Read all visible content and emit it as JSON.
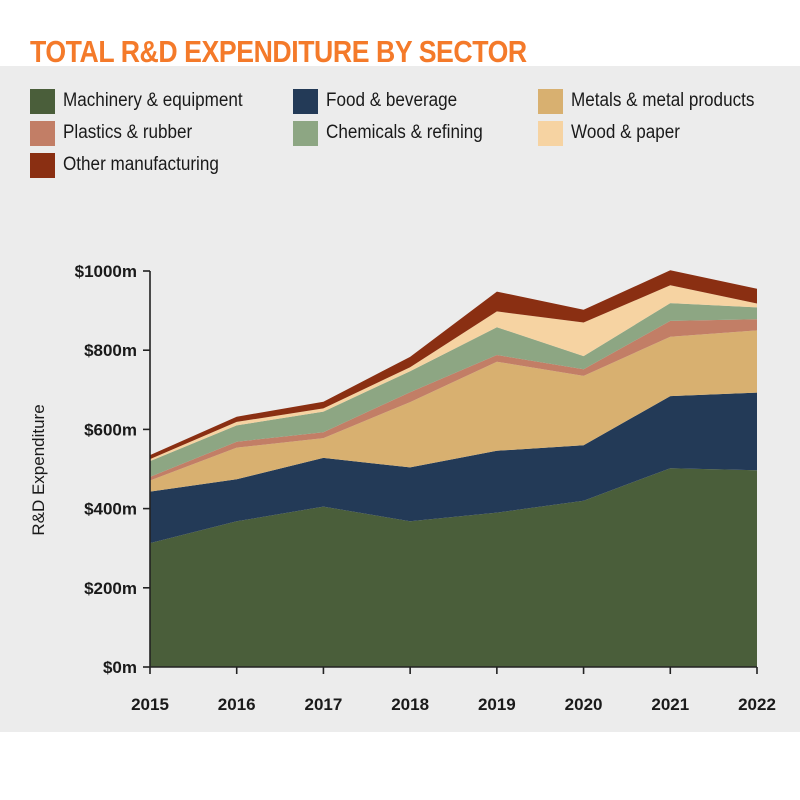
{
  "chart_data": {
    "type": "area",
    "stacked": true,
    "title": "TOTAL R&D EXPENDITURE BY SECTOR",
    "ylabel": "R&D Expenditure",
    "xlabel": "",
    "x": [
      "2015",
      "2016",
      "2017",
      "2018",
      "2019",
      "2020",
      "2021",
      "2022"
    ],
    "ylim": [
      0,
      1000
    ],
    "yticks": [
      {
        "value": 0,
        "label": "$0m"
      },
      {
        "value": 200,
        "label": "$200m"
      },
      {
        "value": 400,
        "label": "$400m"
      },
      {
        "value": 600,
        "label": "$600m"
      },
      {
        "value": 800,
        "label": "$800m"
      },
      {
        "value": 1000,
        "label": "$1000m"
      }
    ],
    "grid": false,
    "legend_position": "top",
    "series": [
      {
        "name": "Machinery & equipment",
        "color": "#4a5e3a",
        "values": [
          313,
          368,
          405,
          368,
          390,
          420,
          502,
          497
        ]
      },
      {
        "name": "Food & beverage",
        "color": "#233a57",
        "values": [
          130,
          106,
          123,
          136,
          156,
          140,
          182,
          196
        ]
      },
      {
        "name": "Metals & metal products",
        "color": "#d8b070",
        "values": [
          28,
          80,
          50,
          165,
          225,
          175,
          150,
          157
        ]
      },
      {
        "name": "Plastics & rubber",
        "color": "#c27e66",
        "values": [
          9,
          15,
          15,
          25,
          17,
          17,
          40,
          28
        ]
      },
      {
        "name": "Chemicals & refining",
        "color": "#8da683",
        "values": [
          40,
          41,
          52,
          53,
          70,
          33,
          45,
          30
        ]
      },
      {
        "name": "Wood & paper",
        "color": "#f6d3a2",
        "values": [
          5,
          9,
          8,
          10,
          40,
          85,
          45,
          10
        ]
      },
      {
        "name": "Other manufacturing",
        "color": "#8a2f12",
        "values": [
          10,
          13,
          17,
          26,
          50,
          32,
          38,
          37
        ]
      }
    ]
  }
}
